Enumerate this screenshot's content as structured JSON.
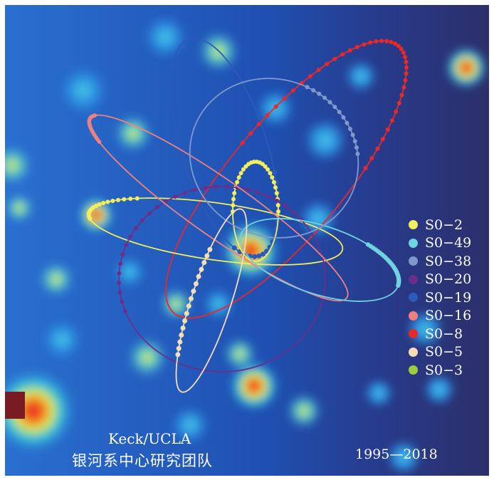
{
  "credit": {
    "en": "Keck/UCLA",
    "zh": "银河系中心研究团队"
  },
  "years": "1995—2018",
  "legend": [
    {
      "label": "S0−2",
      "color": "#f2ee5c"
    },
    {
      "label": "S0−49",
      "color": "#6fd3e0"
    },
    {
      "label": "S0−38",
      "color": "#7f99cc"
    },
    {
      "label": "S0−20",
      "color": "#6a2f8a"
    },
    {
      "label": "S0−19",
      "color": "#2f59b8"
    },
    {
      "label": "S0−16",
      "color": "#f08080"
    },
    {
      "label": "S0−8",
      "color": "#e8282a"
    },
    {
      "label": "S0−5",
      "color": "#f5ddb6"
    },
    {
      "label": "S0−3",
      "color": "#9ccd3c"
    }
  ]
}
